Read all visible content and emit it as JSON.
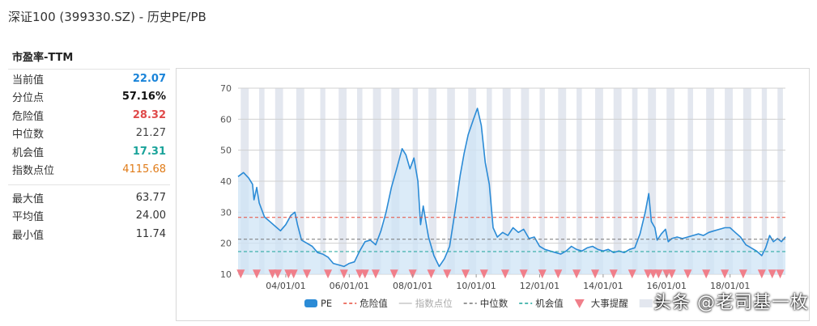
{
  "page": {
    "title": "深证100 (399330.SZ) - 历史PE/PB"
  },
  "stats": {
    "section_title": "市盈率-TTM",
    "rows": [
      {
        "label": "当前值",
        "value": "22.07"
      },
      {
        "label": "分位点",
        "value": "57.16%"
      },
      {
        "label": "危险值",
        "value": "28.32"
      },
      {
        "label": "中位数",
        "value": "21.27"
      },
      {
        "label": "机会值",
        "value": "17.31"
      },
      {
        "label": "指数点位",
        "value": "4115.68"
      }
    ],
    "rows2": [
      {
        "label": "最大值",
        "value": "63.77"
      },
      {
        "label": "平均值",
        "value": "24.00"
      },
      {
        "label": "最小值",
        "value": "11.74"
      }
    ]
  },
  "colors": {
    "pe_line": "#2b8bd6",
    "pe_fill": "#cfe4f6",
    "danger": "#e74c3c",
    "median": "#777777",
    "opportunity": "#1aa39a",
    "index_line": "#c8c8c8",
    "event_marker": "#f07f8a",
    "band": "#e3e7ef",
    "current_value": "#1a84d9",
    "index_value": "#e07b18"
  },
  "watermark": "头条 @老司基一枚",
  "chart_data": {
    "type": "line",
    "title": "",
    "ylim": [
      10,
      70
    ],
    "yticks": [
      10,
      20,
      30,
      40,
      50,
      60,
      70
    ],
    "xlim": [
      "2002-07-01",
      "2019-09-30"
    ],
    "xticks": [
      {
        "date": "2004-01-01",
        "label": "04/01/01"
      },
      {
        "date": "2006-01-01",
        "label": "06/01/01"
      },
      {
        "date": "2008-01-01",
        "label": "08/01/01"
      },
      {
        "date": "2010-01-01",
        "label": "10/01/01"
      },
      {
        "date": "2012-01-01",
        "label": "12/01/01"
      },
      {
        "date": "2014-01-01",
        "label": "14/01/01"
      },
      {
        "date": "2016-01-01",
        "label": "16/01/01"
      },
      {
        "date": "2018-01-01",
        "label": "18/01/01"
      }
    ],
    "grid": true,
    "legend_position": "bottom",
    "legend": [
      {
        "key": "pe",
        "label": "PE"
      },
      {
        "key": "danger",
        "label": "危险值"
      },
      {
        "key": "index",
        "label": "指数点位"
      },
      {
        "key": "median",
        "label": "中位数"
      },
      {
        "key": "opportunity",
        "label": "机会值"
      },
      {
        "key": "events",
        "label": "大事提醒"
      },
      {
        "key": "bands",
        "label": "数"
      }
    ],
    "reference_lines": [
      {
        "key": "danger",
        "label": "危险值",
        "y": 28.32
      },
      {
        "key": "median",
        "label": "中位数",
        "y": 21.27
      },
      {
        "key": "opportunity",
        "label": "机会值",
        "y": 17.31
      }
    ],
    "series": [
      {
        "name": "PE",
        "points": [
          [
            "2002-07-01",
            41.5
          ],
          [
            "2002-09-01",
            42.8
          ],
          [
            "2002-11-01",
            41.0
          ],
          [
            "2002-12-15",
            39.0
          ],
          [
            "2003-01-01",
            34.0
          ],
          [
            "2003-02-01",
            38.0
          ],
          [
            "2003-03-01",
            33.0
          ],
          [
            "2003-05-01",
            28.5
          ],
          [
            "2003-07-01",
            27.0
          ],
          [
            "2003-09-01",
            25.5
          ],
          [
            "2003-11-01",
            24.0
          ],
          [
            "2004-01-01",
            26.0
          ],
          [
            "2004-03-01",
            29.0
          ],
          [
            "2004-04-15",
            30.0
          ],
          [
            "2004-05-15",
            26.0
          ],
          [
            "2004-07-01",
            21.0
          ],
          [
            "2004-09-01",
            20.0
          ],
          [
            "2004-11-01",
            19.0
          ],
          [
            "2005-01-01",
            17.0
          ],
          [
            "2005-03-01",
            16.5
          ],
          [
            "2005-05-01",
            15.5
          ],
          [
            "2005-07-01",
            13.5
          ],
          [
            "2005-09-01",
            13.0
          ],
          [
            "2005-11-01",
            12.5
          ],
          [
            "2006-01-01",
            13.5
          ],
          [
            "2006-03-01",
            14.0
          ],
          [
            "2006-05-01",
            17.5
          ],
          [
            "2006-07-01",
            20.5
          ],
          [
            "2006-09-01",
            21.0
          ],
          [
            "2006-11-01",
            19.5
          ],
          [
            "2007-01-01",
            24.0
          ],
          [
            "2007-03-01",
            30.0
          ],
          [
            "2007-05-01",
            38.0
          ],
          [
            "2007-07-01",
            44.0
          ],
          [
            "2007-09-01",
            50.5
          ],
          [
            "2007-10-15",
            48.5
          ],
          [
            "2007-12-01",
            44.0
          ],
          [
            "2008-01-15",
            47.5
          ],
          [
            "2008-03-01",
            40.0
          ],
          [
            "2008-04-01",
            26.0
          ],
          [
            "2008-05-01",
            32.0
          ],
          [
            "2008-07-01",
            22.0
          ],
          [
            "2008-09-01",
            16.0
          ],
          [
            "2008-11-01",
            12.5
          ],
          [
            "2009-01-01",
            15.0
          ],
          [
            "2009-03-01",
            19.0
          ],
          [
            "2009-05-01",
            30.0
          ],
          [
            "2009-07-01",
            42.0
          ],
          [
            "2009-08-15",
            49.0
          ],
          [
            "2009-10-01",
            55.0
          ],
          [
            "2009-12-01",
            60.0
          ],
          [
            "2010-01-15",
            63.5
          ],
          [
            "2010-03-01",
            58.0
          ],
          [
            "2010-04-15",
            46.0
          ],
          [
            "2010-06-01",
            39.0
          ],
          [
            "2010-07-15",
            25.0
          ],
          [
            "2010-09-01",
            22.0
          ],
          [
            "2010-11-01",
            23.5
          ],
          [
            "2011-01-01",
            22.5
          ],
          [
            "2011-03-01",
            25.0
          ],
          [
            "2011-05-01",
            23.5
          ],
          [
            "2011-07-01",
            24.5
          ],
          [
            "2011-09-01",
            21.5
          ],
          [
            "2011-11-01",
            22.0
          ],
          [
            "2012-01-01",
            19.0
          ],
          [
            "2012-03-01",
            18.0
          ],
          [
            "2012-05-01",
            17.5
          ],
          [
            "2012-07-01",
            17.0
          ],
          [
            "2012-09-01",
            16.5
          ],
          [
            "2012-11-01",
            17.5
          ],
          [
            "2013-01-01",
            19.0
          ],
          [
            "2013-03-01",
            18.0
          ],
          [
            "2013-05-01",
            17.5
          ],
          [
            "2013-07-01",
            18.5
          ],
          [
            "2013-09-01",
            19.0
          ],
          [
            "2013-11-01",
            18.0
          ],
          [
            "2014-01-01",
            17.5
          ],
          [
            "2014-03-01",
            18.0
          ],
          [
            "2014-05-01",
            17.0
          ],
          [
            "2014-07-01",
            17.5
          ],
          [
            "2014-09-01",
            17.0
          ],
          [
            "2014-11-01",
            18.0
          ],
          [
            "2015-01-01",
            18.5
          ],
          [
            "2015-03-01",
            23.0
          ],
          [
            "2015-05-01",
            30.0
          ],
          [
            "2015-06-10",
            36.0
          ],
          [
            "2015-07-10",
            27.0
          ],
          [
            "2015-08-20",
            25.0
          ],
          [
            "2015-09-15",
            21.0
          ],
          [
            "2015-11-01",
            23.0
          ],
          [
            "2015-12-20",
            24.5
          ],
          [
            "2016-01-20",
            20.5
          ],
          [
            "2016-03-01",
            21.5
          ],
          [
            "2016-05-01",
            22.0
          ],
          [
            "2016-07-01",
            21.5
          ],
          [
            "2016-09-01",
            22.0
          ],
          [
            "2016-11-01",
            22.5
          ],
          [
            "2017-01-01",
            23.0
          ],
          [
            "2017-03-01",
            22.5
          ],
          [
            "2017-05-01",
            23.5
          ],
          [
            "2017-07-01",
            24.0
          ],
          [
            "2017-09-01",
            24.5
          ],
          [
            "2017-11-01",
            25.0
          ],
          [
            "2018-01-01",
            25.0
          ],
          [
            "2018-03-01",
            23.5
          ],
          [
            "2018-05-01",
            22.0
          ],
          [
            "2018-07-01",
            19.5
          ],
          [
            "2018-09-01",
            18.5
          ],
          [
            "2018-11-01",
            17.5
          ],
          [
            "2019-01-01",
            16.0
          ],
          [
            "2019-02-15",
            18.5
          ],
          [
            "2019-04-01",
            22.5
          ],
          [
            "2019-05-15",
            20.5
          ],
          [
            "2019-07-01",
            21.5
          ],
          [
            "2019-08-15",
            20.5
          ],
          [
            "2019-09-30",
            22.07
          ]
        ]
      }
    ],
    "event_dates": [
      "2002-08-01",
      "2003-02-01",
      "2003-08-01",
      "2003-10-01",
      "2004-02-01",
      "2004-04-01",
      "2004-09-01",
      "2005-05-01",
      "2005-11-01",
      "2006-05-01",
      "2006-07-01",
      "2006-11-01",
      "2007-06-01",
      "2008-01-01",
      "2008-08-01",
      "2009-02-01",
      "2009-09-01",
      "2010-04-01",
      "2010-12-01",
      "2011-07-01",
      "2012-02-01",
      "2012-08-01",
      "2013-03-01",
      "2013-10-01",
      "2014-05-01",
      "2014-12-01",
      "2015-06-01",
      "2015-08-01",
      "2015-10-01",
      "2016-01-01",
      "2016-03-01",
      "2016-09-01",
      "2017-04-01",
      "2017-11-01",
      "2018-06-01",
      "2019-01-01",
      "2019-05-01",
      "2019-08-01"
    ],
    "shaded_bands": [
      [
        "2002-08-01",
        "2002-11-01"
      ],
      [
        "2003-03-01",
        "2003-05-01"
      ],
      [
        "2003-09-01",
        "2003-12-01"
      ],
      [
        "2004-05-01",
        "2004-08-01"
      ],
      [
        "2005-02-01",
        "2005-04-01"
      ],
      [
        "2005-09-01",
        "2005-12-01"
      ],
      [
        "2006-04-01",
        "2006-06-01"
      ],
      [
        "2006-10-01",
        "2007-01-01"
      ],
      [
        "2007-05-01",
        "2007-08-01"
      ],
      [
        "2008-01-01",
        "2008-03-01"
      ],
      [
        "2008-07-01",
        "2008-10-01"
      ],
      [
        "2009-02-01",
        "2009-05-01"
      ],
      [
        "2009-10-01",
        "2010-01-01"
      ],
      [
        "2010-05-01",
        "2010-07-01"
      ],
      [
        "2010-11-01",
        "2011-02-01"
      ],
      [
        "2011-06-01",
        "2011-09-01"
      ],
      [
        "2012-01-01",
        "2012-03-01"
      ],
      [
        "2012-08-01",
        "2012-11-01"
      ],
      [
        "2013-03-01",
        "2013-05-01"
      ],
      [
        "2013-10-01",
        "2014-01-01"
      ],
      [
        "2014-05-01",
        "2014-08-01"
      ],
      [
        "2014-12-01",
        "2015-02-01"
      ],
      [
        "2015-06-01",
        "2015-09-01"
      ],
      [
        "2016-01-01",
        "2016-04-01"
      ],
      [
        "2016-09-01",
        "2016-11-01"
      ],
      [
        "2017-04-01",
        "2017-07-01"
      ],
      [
        "2017-11-01",
        "2018-02-01"
      ],
      [
        "2018-06-01",
        "2018-09-01"
      ],
      [
        "2019-01-01",
        "2019-03-01"
      ],
      [
        "2019-07-01",
        "2019-09-01"
      ]
    ]
  }
}
